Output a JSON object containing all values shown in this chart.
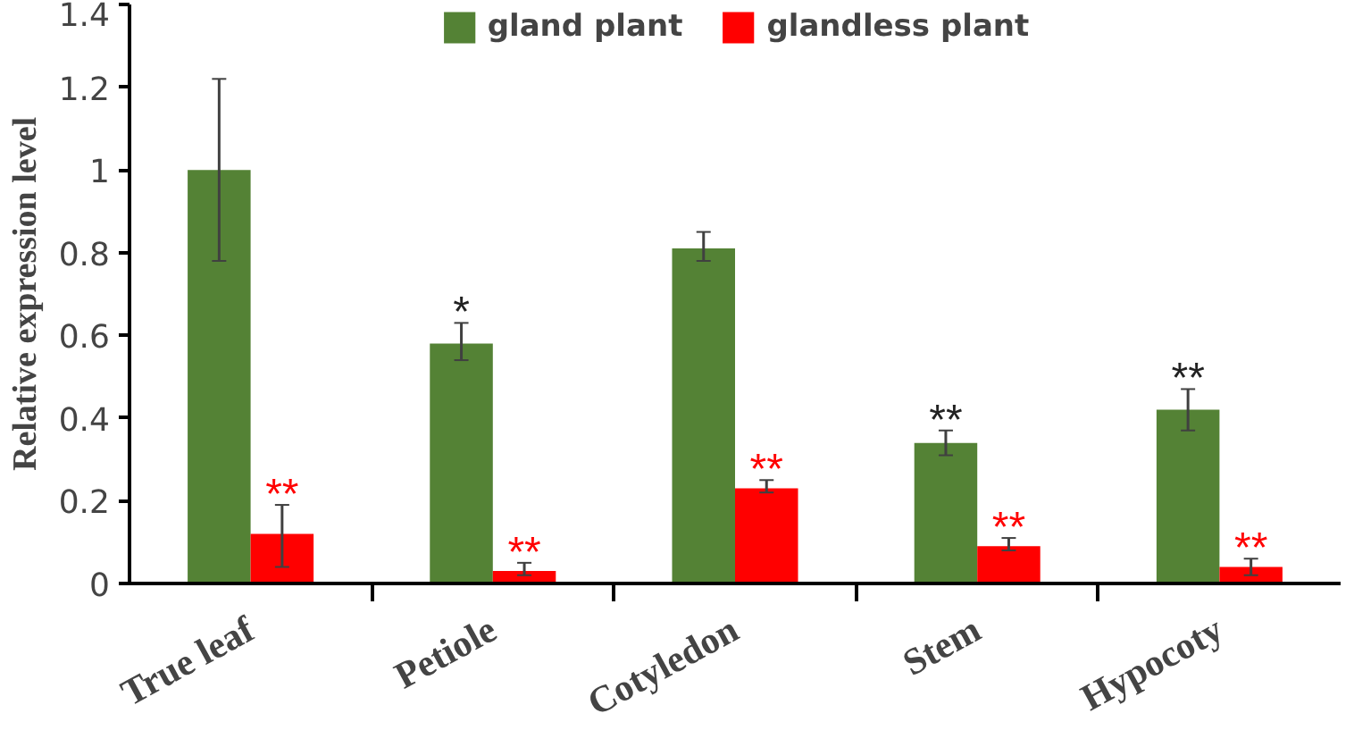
{
  "chart_data": {
    "type": "bar",
    "ylabel": "Relative expression level",
    "categories": [
      "True leaf",
      "Petiole",
      "Cotyledon",
      "Stem",
      "Hypocoty"
    ],
    "series": [
      {
        "name": "gland plant",
        "color": "#548235",
        "values": [
          1.0,
          0.58,
          0.81,
          0.34,
          0.42
        ],
        "errors": [
          [
            0.78,
            1.22
          ],
          [
            0.54,
            0.63
          ],
          [
            0.78,
            0.85
          ],
          [
            0.31,
            0.37
          ],
          [
            0.37,
            0.47
          ]
        ],
        "value_labels": [
          null,
          "*",
          null,
          "**",
          "**"
        ]
      },
      {
        "name": "glandless plant",
        "color": "#ff0000",
        "values": [
          0.12,
          0.03,
          0.23,
          0.09,
          0.04
        ],
        "errors": [
          [
            0.04,
            0.19
          ],
          [
            0.02,
            0.05
          ],
          [
            0.22,
            0.25
          ],
          [
            0.08,
            0.11
          ],
          [
            0.02,
            0.06
          ]
        ],
        "value_labels": [
          "**",
          "**",
          "**",
          "**",
          "**"
        ]
      }
    ],
    "ylim": [
      0,
      1.4
    ],
    "yticks": [
      0,
      0.2,
      0.4,
      0.6,
      0.8,
      1,
      1.2,
      1.4
    ],
    "grid": false,
    "legend": "top"
  }
}
